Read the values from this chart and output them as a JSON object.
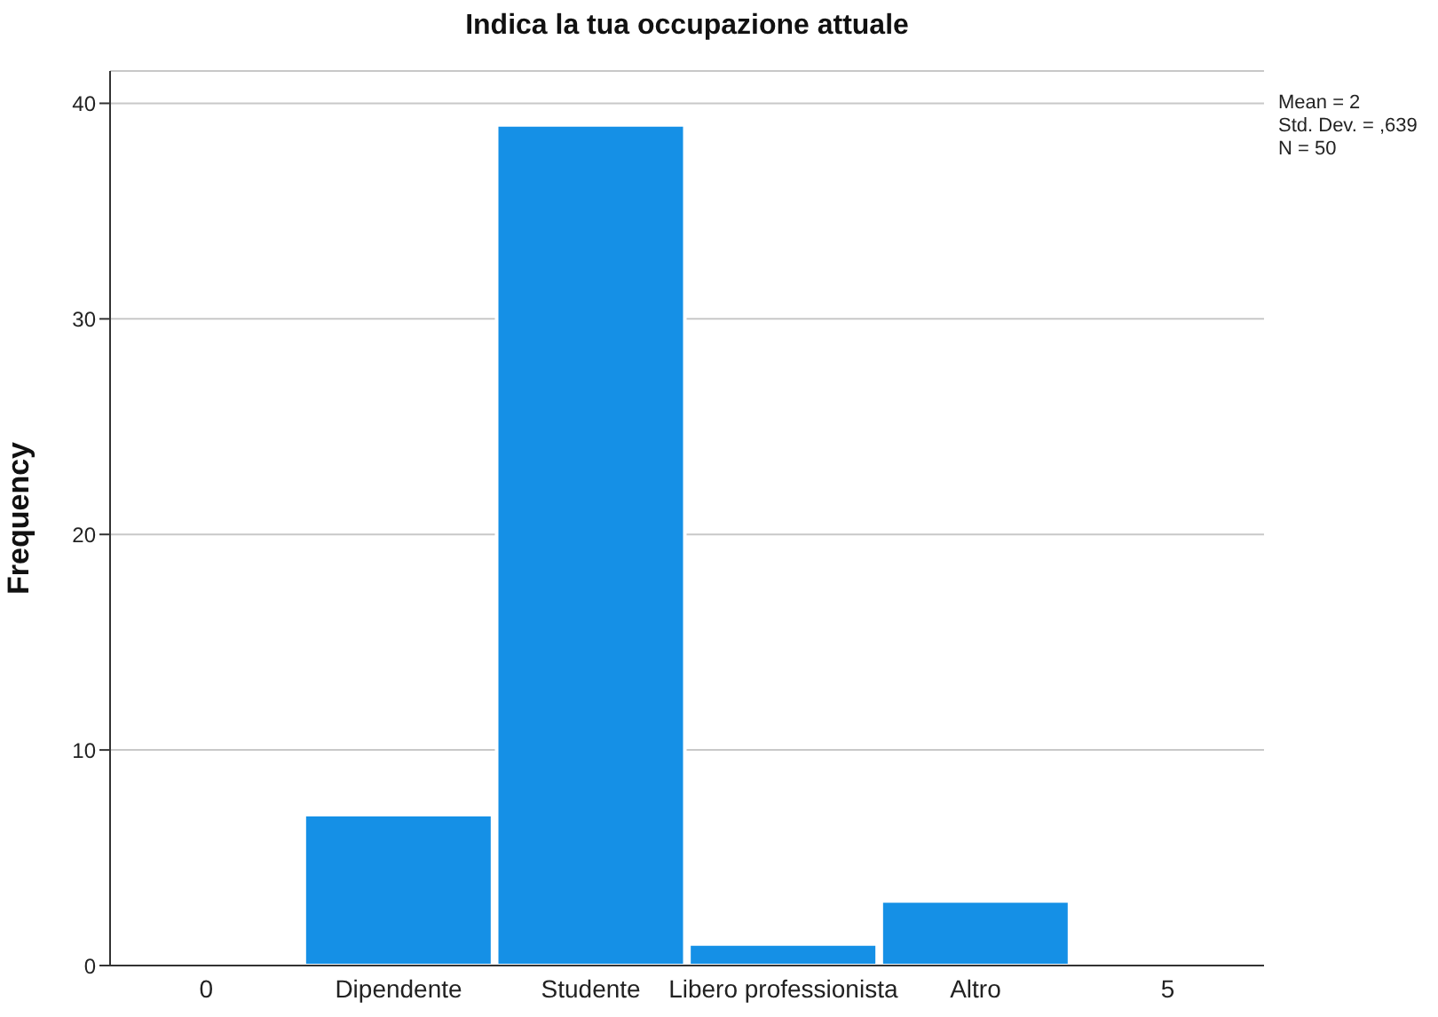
{
  "chart_data": {
    "type": "bar",
    "title": "Indica la tua occupazione attuale",
    "ylabel": "Frequency",
    "categories": [
      "0",
      "Dipendente",
      "Studente",
      "Libero professionista",
      "Altro",
      "5"
    ],
    "values": [
      null,
      7,
      39,
      1,
      3,
      null
    ],
    "color": "#1590e6",
    "ylim": [
      0,
      41.5
    ],
    "yticks": [
      0,
      10,
      20,
      30,
      40
    ],
    "grid": "y",
    "annotations": [
      "Mean = 2",
      "Std. Dev. = ,639",
      "N = 50"
    ]
  }
}
